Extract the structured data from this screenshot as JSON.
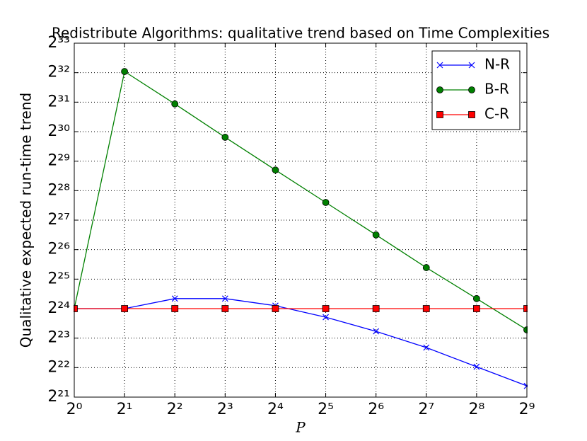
{
  "chart_data": {
    "type": "line",
    "title": "Redistribute Algorithms: qualitative trend based on Time Complexities",
    "xlabel": "P",
    "ylabel": "Qualitative expected run-time trend",
    "x": [
      1,
      2,
      4,
      8,
      16,
      32,
      64,
      128,
      256,
      512
    ],
    "series": [
      {
        "name": "N-R",
        "color": "#0000ff",
        "marker": "x",
        "values": [
          16777216,
          16777216,
          21240000,
          21240000,
          17980000,
          13720000,
          9840000,
          6720000,
          4282000,
          2729000
        ]
      },
      {
        "name": "B-R",
        "color": "#008000",
        "marker": "o",
        "values": [
          16777216,
          4416000000,
          2060000000,
          941000000,
          436000000,
          203400000,
          94900000,
          43970000,
          21240000,
          10190000
        ]
      },
      {
        "name": "C-R",
        "color": "#ff0000",
        "marker": "s",
        "values": [
          16777216,
          16777216,
          16777216,
          16777216,
          16777216,
          16777216,
          16777216,
          16777216,
          16777216,
          16777216
        ]
      }
    ],
    "xscale": "log2",
    "yscale": "log2",
    "xlim": [
      1,
      512
    ],
    "ylim": [
      2097152,
      8589934592
    ],
    "xticks": [
      {
        "value": 1,
        "label": "2⁰"
      },
      {
        "value": 2,
        "label": "2¹"
      },
      {
        "value": 4,
        "label": "2²"
      },
      {
        "value": 8,
        "label": "2³"
      },
      {
        "value": 16,
        "label": "2⁴"
      },
      {
        "value": 32,
        "label": "2⁵"
      },
      {
        "value": 64,
        "label": "2⁶"
      },
      {
        "value": 128,
        "label": "2⁷"
      },
      {
        "value": 256,
        "label": "2⁸"
      },
      {
        "value": 512,
        "label": "2⁹"
      }
    ],
    "yticks": [
      {
        "value": 2097152,
        "label": "2²¹"
      },
      {
        "value": 4194304,
        "label": "2²²"
      },
      {
        "value": 8388608,
        "label": "2²³"
      },
      {
        "value": 16777216,
        "label": "2²⁴"
      },
      {
        "value": 33554432,
        "label": "2²⁵"
      },
      {
        "value": 67108864,
        "label": "2²⁶"
      },
      {
        "value": 134217728,
        "label": "2²⁷"
      },
      {
        "value": 268435456,
        "label": "2²⁸"
      },
      {
        "value": 536870912,
        "label": "2²⁹"
      },
      {
        "value": 1073741824,
        "label": "2³⁰"
      },
      {
        "value": 2147483648,
        "label": "2³¹"
      },
      {
        "value": 4294967296,
        "label": "2³²"
      },
      {
        "value": 8589934592,
        "label": "2³³"
      }
    ],
    "grid": true,
    "legend": "upper right"
  }
}
